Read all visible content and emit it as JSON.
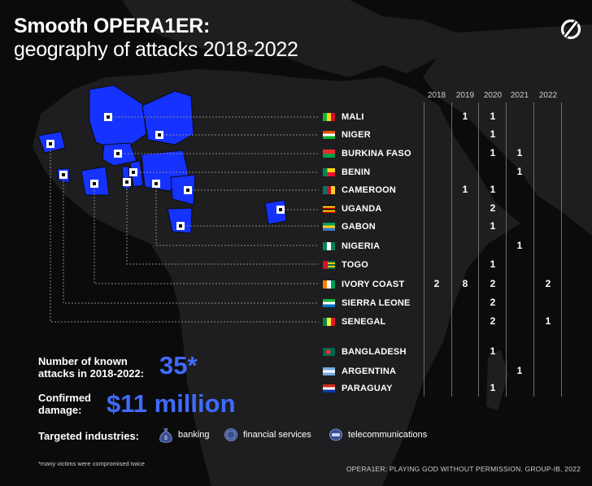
{
  "title": {
    "line1": "Smooth OPERA1ER:",
    "line2": "geography of attacks 2018-2022"
  },
  "colors": {
    "accent": "#3f6bff",
    "map_highlight": "#1532ff",
    "land": "#1e1e20",
    "background": "#0b0b0c"
  },
  "years": [
    "2018",
    "2019",
    "2020",
    "2021",
    "2022"
  ],
  "countries": [
    {
      "name": "MALI",
      "flag": "mali",
      "counts": [
        "",
        "1",
        "1",
        "",
        ""
      ]
    },
    {
      "name": "NIGER",
      "flag": "niger",
      "counts": [
        "",
        "",
        "1",
        "",
        ""
      ]
    },
    {
      "name": "BURKINA FASO",
      "flag": "burkina",
      "counts": [
        "",
        "",
        "1",
        "1",
        ""
      ]
    },
    {
      "name": "BENIN",
      "flag": "benin",
      "counts": [
        "",
        "",
        "",
        "1",
        ""
      ]
    },
    {
      "name": "CAMEROON",
      "flag": "cameroon",
      "counts": [
        "",
        "1",
        "1",
        "",
        ""
      ]
    },
    {
      "name": "UGANDA",
      "flag": "uganda",
      "counts": [
        "",
        "",
        "2",
        "",
        ""
      ]
    },
    {
      "name": "GABON",
      "flag": "gabon",
      "counts": [
        "",
        "",
        "1",
        "",
        ""
      ]
    },
    {
      "name": "NIGERIA",
      "flag": "nigeria",
      "counts": [
        "",
        "",
        "",
        "1",
        ""
      ]
    },
    {
      "name": "TOGO",
      "flag": "togo",
      "counts": [
        "",
        "",
        "1",
        "",
        ""
      ]
    },
    {
      "name": "IVORY COAST",
      "flag": "ivory",
      "counts": [
        "2",
        "8",
        "2",
        "",
        "2"
      ]
    },
    {
      "name": "SIERRA LEONE",
      "flag": "sierra",
      "counts": [
        "",
        "",
        "2",
        "",
        ""
      ]
    },
    {
      "name": "SENEGAL",
      "flag": "senegal",
      "counts": [
        "",
        "",
        "2",
        "",
        "1"
      ]
    },
    {
      "name": "BANGLADESH",
      "flag": "bangladesh",
      "counts": [
        "",
        "",
        "1",
        "",
        ""
      ]
    },
    {
      "name": "ARGENTINA",
      "flag": "argentina",
      "counts": [
        "",
        "",
        "",
        "1",
        ""
      ]
    },
    {
      "name": "PARAGUAY",
      "flag": "paraguay",
      "counts": [
        "",
        "",
        "1",
        "",
        ""
      ]
    }
  ],
  "stats": {
    "attacks_label_1": "Number of known",
    "attacks_label_2": "attacks in 2018-2022:",
    "attacks_value": "35*",
    "damage_label_1": "Confirmed",
    "damage_label_2": "damage:",
    "damage_value": "$11 million"
  },
  "industries": {
    "label": "Targeted industries:",
    "items": [
      {
        "name": "banking",
        "icon": "money-bag-icon"
      },
      {
        "name": "financial services",
        "icon": "coin-icon"
      },
      {
        "name": "telecommunications",
        "icon": "phone-icon"
      }
    ]
  },
  "footnote": "*many victims were compromised twice",
  "footer": "OPERA1ER: PLAYING GOD WITHOUT PERMISSION. GROUP-IB, 2022"
}
